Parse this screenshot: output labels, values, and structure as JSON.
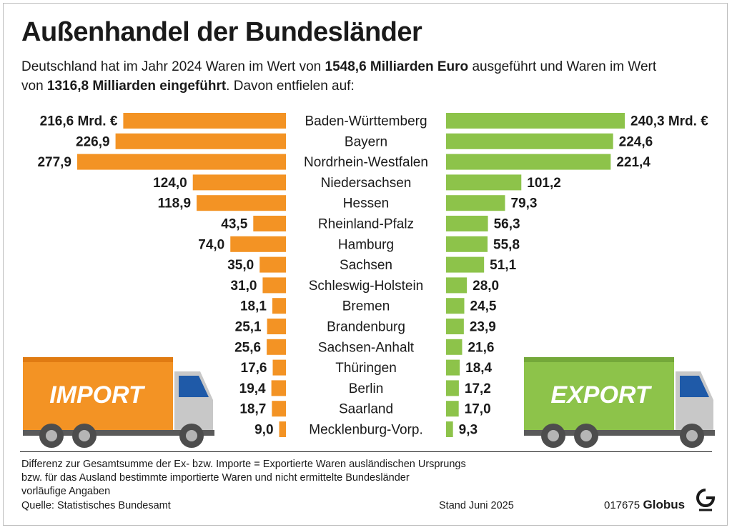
{
  "title": "Außenhandel der Bundesländer",
  "intro": {
    "part1": "Deutschland hat im Jahr 2024 Waren im Wert von ",
    "bold1": "1548,6 Milliarden Euro",
    "part2": " ausgeführt und Waren im Wert von ",
    "bold2": "1316,8 Milliarden eingeführt",
    "part3": ". Davon entfielen auf:"
  },
  "chart_data": {
    "type": "bar",
    "categories": [
      "Baden-Württemberg",
      "Bayern",
      "Nordrhein-Westfalen",
      "Niedersachsen",
      "Hessen",
      "Rheinland-Pfalz",
      "Hamburg",
      "Sachsen",
      "Schleswig-Holstein",
      "Bremen",
      "Brandenburg",
      "Sachsen-Anhalt",
      "Thüringen",
      "Berlin",
      "Saarland",
      "Mecklenburg-Vorp."
    ],
    "series": [
      {
        "name": "IMPORT",
        "values": [
          216.6,
          226.9,
          277.9,
          124.0,
          118.9,
          43.5,
          74.0,
          35.0,
          31.0,
          18.1,
          25.1,
          25.6,
          17.6,
          19.4,
          18.7,
          9.0
        ],
        "labels": [
          "216,6 Mrd. €",
          "226,9",
          "277,9",
          "124,0",
          "118,9",
          "43,5",
          "74,0",
          "35,0",
          "31,0",
          "18,1",
          "25,1",
          "25,6",
          "17,6",
          "19,4",
          "18,7",
          "9,0"
        ]
      },
      {
        "name": "EXPORT",
        "values": [
          240.3,
          224.6,
          221.4,
          101.2,
          79.3,
          56.3,
          55.8,
          51.1,
          28.0,
          24.5,
          23.9,
          21.6,
          18.4,
          17.2,
          17.0,
          9.3
        ],
        "labels": [
          "240,3 Mrd. €",
          "224,6",
          "221,4",
          "101,2",
          "79,3",
          "56,3",
          "55,8",
          "51,1",
          "28,0",
          "24,5",
          "23,9",
          "21,6",
          "18,4",
          "17,2",
          "17,0",
          "9,3"
        ]
      }
    ],
    "colors": {
      "import": "#f39324",
      "export": "#8dc34a"
    }
  },
  "footnote": [
    "Differenz zur Gesamtsumme der Ex- bzw. Importe = Exportierte Waren ausländischen Ursprungs",
    "bzw. für das Ausland bestimmte importierte Waren und nicht ermittelte Bundesländer",
    "vorläufige Angaben"
  ],
  "source": "Quelle: Statistisches Bundesamt",
  "stand": "Stand Juni 2025",
  "code": "017675",
  "brand": "Globus"
}
